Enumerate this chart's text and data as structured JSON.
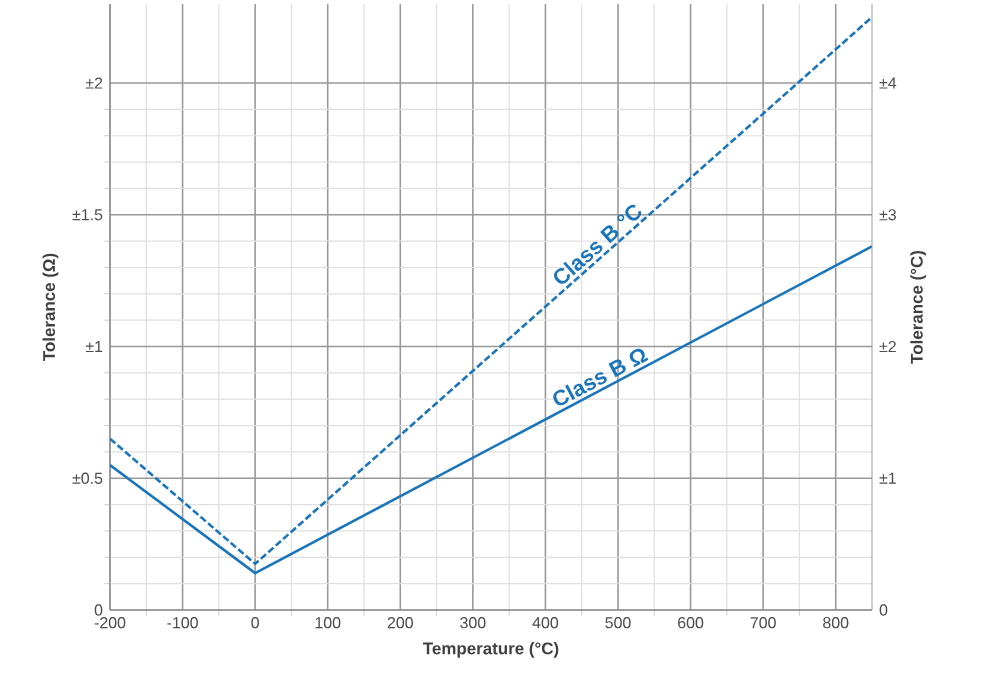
{
  "chart_data": {
    "type": "line",
    "xlabel": "Temperature (°C)",
    "ylabel": "Tolerance (Ω)",
    "y2label": "Tolerance (°C)",
    "x": [
      -200,
      0,
      850
    ],
    "xlim": [
      -200,
      850
    ],
    "xticks": [
      -200,
      -100,
      0,
      100,
      200,
      300,
      400,
      500,
      600,
      700,
      800
    ],
    "ylim": [
      0,
      2.3
    ],
    "yticks": [
      0,
      {
        "value": 0.5,
        "label": "±0.5"
      },
      {
        "value": 1,
        "label": "±1"
      },
      {
        "value": 1.5,
        "label": "±1.5"
      },
      {
        "value": 2,
        "label": "±2"
      }
    ],
    "y2lim": [
      0,
      4.6
    ],
    "y2ticks": [
      0,
      {
        "value": 1,
        "label": "±1"
      },
      {
        "value": 2,
        "label": "±2"
      },
      {
        "value": 3,
        "label": "±3"
      },
      {
        "value": 4,
        "label": "±4"
      }
    ],
    "grid": true,
    "series": [
      {
        "name": "Class B Ω",
        "color": "#1b75bb",
        "values": [
          0.55,
          0.14,
          1.38
        ],
        "line_style": "solid"
      },
      {
        "name": "Class B °C",
        "color": "#1b75bb",
        "values": [
          1.3,
          0.35,
          4.5
        ],
        "axis": "y2",
        "line_style": "dashed"
      }
    ]
  }
}
